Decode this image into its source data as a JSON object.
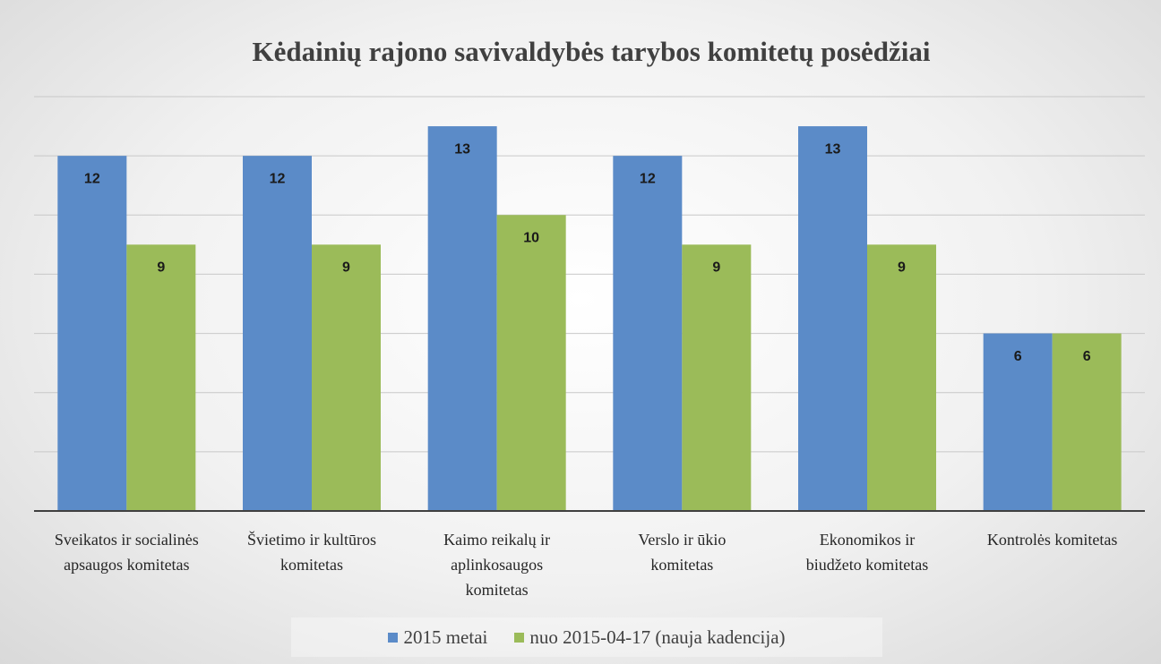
{
  "chart_data": {
    "type": "bar",
    "title": "Kėdainių rajono savivaldybės tarybos komitetų posėdžiai",
    "categories": [
      "Sveikatos ir socialinės apsaugos komitetas",
      "Švietimo ir kultūros komitetas",
      "Kaimo reikalų ir aplinkosaugos komitetas",
      "Verslo ir ūkio komitetas",
      "Ekonomikos ir biudžeto komitetas",
      "Kontrolės komitetas"
    ],
    "series": [
      {
        "name": "2015 metai",
        "color": "#5b8bc8",
        "values": [
          12,
          12,
          13,
          12,
          13,
          6
        ]
      },
      {
        "name": "nuo 2015-04-17 (nauja kadencija)",
        "color": "#9bbb59",
        "values": [
          9,
          9,
          10,
          9,
          9,
          6
        ]
      }
    ],
    "ylim": [
      0,
      14
    ],
    "yticks": [
      0,
      2,
      4,
      6,
      8,
      10,
      12,
      14
    ],
    "grid": true,
    "legend": "bottom"
  }
}
